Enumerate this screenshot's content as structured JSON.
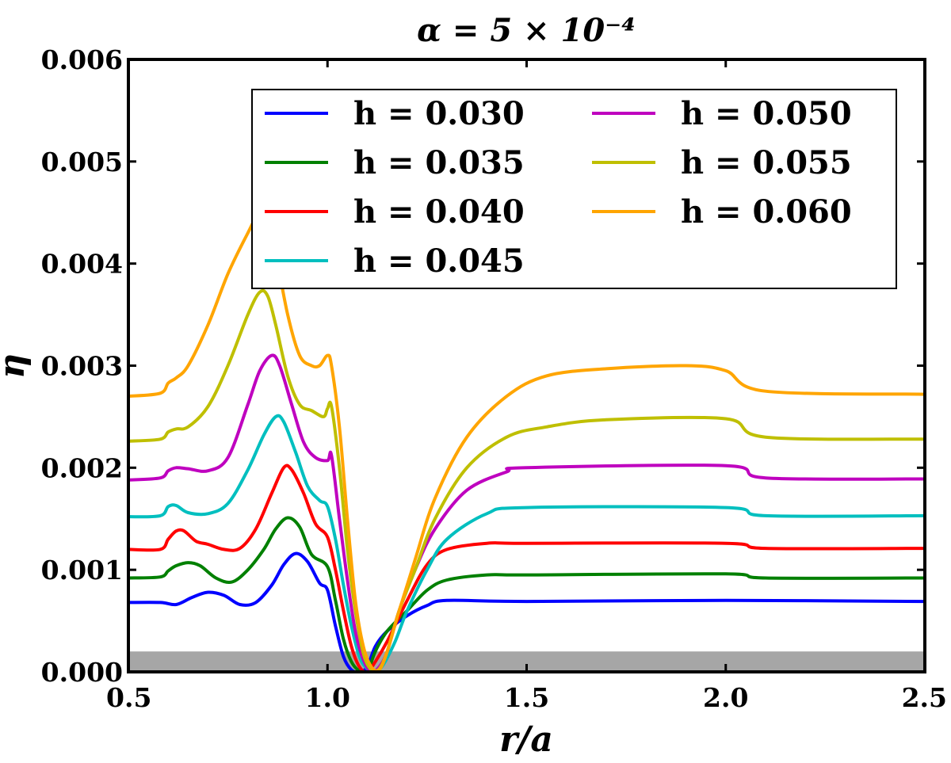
{
  "chart_data": {
    "type": "line",
    "title": "α = 5 × 10⁻⁴",
    "xlabel": "r/a",
    "ylabel": "η",
    "xlim": [
      0.5,
      2.5
    ],
    "ylim": [
      0.0,
      0.006
    ],
    "xticks": [
      "0.5",
      "1.0",
      "1.5",
      "2.0",
      "2.5"
    ],
    "yticks": [
      "0.000",
      "0.001",
      "0.002",
      "0.003",
      "0.004",
      "0.005",
      "0.006"
    ],
    "shaded_band": {
      "y_from": 0.0,
      "y_to": 0.0002,
      "color": "#a6a6a6"
    },
    "legend": {
      "placement": "upper-right",
      "columns": 2
    },
    "grid": false,
    "series": [
      {
        "name": "h = 0.030",
        "color": "#0000ff",
        "x": [
          0.5,
          0.58,
          0.62,
          0.66,
          0.7,
          0.74,
          0.78,
          0.82,
          0.86,
          0.89,
          0.92,
          0.95,
          0.98,
          1.0,
          1.02,
          1.04,
          1.06,
          1.08,
          1.1,
          1.12,
          1.15,
          1.2,
          1.25,
          1.3,
          1.5,
          2.0,
          2.5
        ],
        "y": [
          0.00068,
          0.00068,
          0.00066,
          0.00073,
          0.00078,
          0.00075,
          0.00066,
          0.00068,
          0.00085,
          0.00105,
          0.00116,
          0.00108,
          0.00087,
          0.0008,
          0.00045,
          0.00015,
          2e-05,
          0.0,
          5e-05,
          0.00025,
          0.0004,
          0.00055,
          0.00065,
          0.0007,
          0.00069,
          0.0007,
          0.00069
        ]
      },
      {
        "name": "h = 0.035",
        "color": "#008000",
        "x": [
          0.5,
          0.58,
          0.6,
          0.62,
          0.65,
          0.68,
          0.72,
          0.76,
          0.8,
          0.84,
          0.87,
          0.9,
          0.93,
          0.96,
          1.0,
          1.02,
          1.04,
          1.06,
          1.08,
          1.1,
          1.12,
          1.15,
          1.2,
          1.25,
          1.3,
          1.4,
          1.5,
          2.0,
          2.1,
          2.5
        ],
        "y": [
          0.00092,
          0.00093,
          0.00099,
          0.00104,
          0.00107,
          0.00104,
          0.00092,
          0.00088,
          0.001,
          0.0012,
          0.0014,
          0.00151,
          0.00142,
          0.00115,
          0.00103,
          0.0007,
          0.00032,
          0.0001,
          1e-05,
          0.0,
          0.0002,
          0.0004,
          0.0006,
          0.0008,
          0.0009,
          0.00095,
          0.00095,
          0.00096,
          0.00092,
          0.00092
        ]
      },
      {
        "name": "h = 0.040",
        "color": "#ff0000",
        "x": [
          0.5,
          0.58,
          0.6,
          0.62,
          0.64,
          0.67,
          0.7,
          0.74,
          0.78,
          0.82,
          0.86,
          0.89,
          0.91,
          0.94,
          0.97,
          1.0,
          1.02,
          1.04,
          1.06,
          1.08,
          1.1,
          1.12,
          1.15,
          1.2,
          1.25,
          1.3,
          1.4,
          1.5,
          2.0,
          2.1,
          2.5
        ],
        "y": [
          0.0012,
          0.0012,
          0.0013,
          0.00138,
          0.00138,
          0.00128,
          0.00125,
          0.0012,
          0.00121,
          0.0014,
          0.00175,
          0.002,
          0.00198,
          0.00175,
          0.00145,
          0.00132,
          0.001,
          0.0006,
          0.00025,
          5e-05,
          0.0,
          0.0001,
          0.0003,
          0.0007,
          0.00105,
          0.0012,
          0.00126,
          0.00126,
          0.00126,
          0.00121,
          0.00121
        ]
      },
      {
        "name": "h = 0.045",
        "color": "#00bfbf",
        "x": [
          0.5,
          0.58,
          0.6,
          0.62,
          0.65,
          0.7,
          0.75,
          0.8,
          0.84,
          0.87,
          0.89,
          0.92,
          0.95,
          0.98,
          1.0,
          1.02,
          1.04,
          1.06,
          1.08,
          1.1,
          1.12,
          1.14,
          1.17,
          1.2,
          1.25,
          1.3,
          1.4,
          1.5,
          2.0,
          2.1,
          2.5
        ],
        "y": [
          0.00152,
          0.00153,
          0.00162,
          0.00163,
          0.00156,
          0.00155,
          0.00165,
          0.00198,
          0.00232,
          0.0025,
          0.00245,
          0.00215,
          0.00182,
          0.00168,
          0.00162,
          0.0013,
          0.00085,
          0.00045,
          0.00015,
          3e-05,
          0.0,
          7e-05,
          0.0003,
          0.0006,
          0.001,
          0.0013,
          0.00155,
          0.00161,
          0.00161,
          0.00153,
          0.00153
        ]
      },
      {
        "name": "h = 0.050",
        "color": "#bf00bf",
        "x": [
          0.5,
          0.58,
          0.6,
          0.62,
          0.65,
          0.7,
          0.75,
          0.8,
          0.83,
          0.86,
          0.88,
          0.91,
          0.94,
          0.97,
          1.0,
          1.01,
          1.03,
          1.05,
          1.07,
          1.09,
          1.11,
          1.13,
          1.15,
          1.18,
          1.22,
          1.27,
          1.35,
          1.45,
          1.5,
          2.0,
          2.1,
          2.5
        ],
        "y": [
          0.00188,
          0.0019,
          0.00197,
          0.002,
          0.00199,
          0.00197,
          0.0021,
          0.00262,
          0.00295,
          0.0031,
          0.003,
          0.00262,
          0.00225,
          0.0021,
          0.00207,
          0.00212,
          0.0015,
          0.0009,
          0.0004,
          0.00012,
          0.0,
          5e-05,
          0.0002,
          0.0006,
          0.001,
          0.0014,
          0.00178,
          0.00196,
          0.002,
          0.00202,
          0.0019,
          0.00189
        ]
      },
      {
        "name": "h = 0.055",
        "color": "#bfbf00",
        "x": [
          0.5,
          0.58,
          0.6,
          0.62,
          0.65,
          0.7,
          0.75,
          0.8,
          0.83,
          0.85,
          0.87,
          0.9,
          0.93,
          0.96,
          0.99,
          1.0,
          1.01,
          1.03,
          1.05,
          1.07,
          1.09,
          1.11,
          1.13,
          1.15,
          1.18,
          1.22,
          1.27,
          1.35,
          1.45,
          1.55,
          1.7,
          2.0,
          2.1,
          2.5
        ],
        "y": [
          0.00226,
          0.00228,
          0.00235,
          0.00238,
          0.0024,
          0.0026,
          0.003,
          0.0035,
          0.00372,
          0.00368,
          0.0034,
          0.0029,
          0.00262,
          0.00256,
          0.0025,
          0.00258,
          0.0026,
          0.002,
          0.0012,
          0.0006,
          0.00018,
          2e-05,
          3e-05,
          0.0002,
          0.0006,
          0.001,
          0.0015,
          0.002,
          0.0023,
          0.0024,
          0.00247,
          0.00248,
          0.0023,
          0.00228
        ]
      },
      {
        "name": "h = 0.060",
        "color": "#ffa500",
        "x": [
          0.5,
          0.58,
          0.6,
          0.62,
          0.65,
          0.7,
          0.75,
          0.8,
          0.83,
          0.85,
          0.87,
          0.9,
          0.93,
          0.96,
          0.98,
          1.0,
          1.01,
          1.03,
          1.05,
          1.07,
          1.09,
          1.11,
          1.13,
          1.15,
          1.18,
          1.22,
          1.27,
          1.35,
          1.45,
          1.55,
          1.7,
          1.9,
          2.0,
          2.1,
          2.5
        ],
        "y": [
          0.0027,
          0.00273,
          0.00283,
          0.00288,
          0.003,
          0.0034,
          0.0039,
          0.0043,
          0.0045,
          0.0044,
          0.0041,
          0.0035,
          0.0031,
          0.003,
          0.003,
          0.0031,
          0.003,
          0.0024,
          0.0015,
          0.0007,
          0.00025,
          5e-05,
          2e-05,
          0.0002,
          0.0006,
          0.0011,
          0.0017,
          0.0023,
          0.0027,
          0.0029,
          0.00297,
          0.003,
          0.00295,
          0.00275,
          0.00272
        ]
      }
    ]
  }
}
